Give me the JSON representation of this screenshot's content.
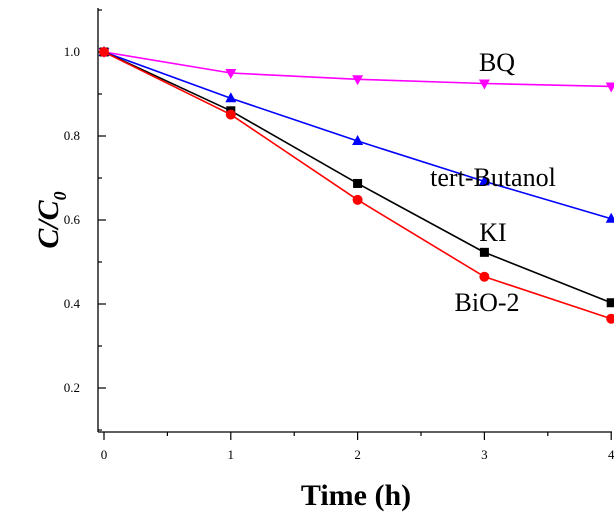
{
  "chart_data": {
    "type": "line",
    "xlabel": "Time (h)",
    "ylabel": {
      "main": "C/C",
      "sub": "0"
    },
    "x": [
      0,
      1,
      2,
      3,
      4
    ],
    "x_ticks": [
      "0",
      "1",
      "2",
      "3",
      "4"
    ],
    "y_ticks": [
      "0.2",
      "0.4",
      "0.6",
      "0.8",
      "1.0"
    ],
    "xlim": [
      -0.05,
      4.0
    ],
    "ylim": [
      0.1,
      1.1
    ],
    "grid": false,
    "legend": "inline labels next to each series",
    "series": [
      {
        "name": "BQ",
        "values": [
          1.0,
          0.95,
          0.935,
          0.925,
          0.918
        ],
        "color": "#ff00ff",
        "marker": "triangle-down"
      },
      {
        "name": "tert-Butanol",
        "values": [
          1.0,
          0.89,
          0.788,
          0.692,
          0.603
        ],
        "color": "#0000ff",
        "marker": "triangle-up"
      },
      {
        "name": "KI",
        "values": [
          1.0,
          0.86,
          0.687,
          0.523,
          0.403
        ],
        "color": "#000000",
        "marker": "square"
      },
      {
        "name": "BiO-2",
        "values": [
          1.0,
          0.851,
          0.648,
          0.465,
          0.365
        ],
        "color": "#ff0000",
        "marker": "circle"
      }
    ]
  }
}
